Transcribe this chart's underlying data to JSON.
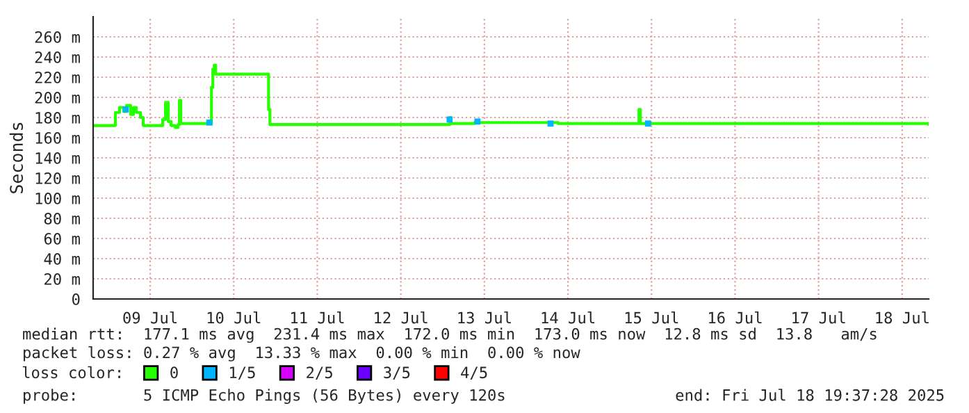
{
  "chart_data": {
    "type": "line",
    "ylabel": "Seconds",
    "xlim": [
      "2025-07-08T19:37",
      "2025-07-18T19:37"
    ],
    "xticks": [
      {
        "value": "2025-07-09T12:00",
        "label": "09 Jul"
      },
      {
        "value": "2025-07-10T12:00",
        "label": "10 Jul"
      },
      {
        "value": "2025-07-11T12:00",
        "label": "11 Jul"
      },
      {
        "value": "2025-07-12T12:00",
        "label": "12 Jul"
      },
      {
        "value": "2025-07-13T12:00",
        "label": "13 Jul"
      },
      {
        "value": "2025-07-14T12:00",
        "label": "14 Jul"
      },
      {
        "value": "2025-07-15T12:00",
        "label": "15 Jul"
      },
      {
        "value": "2025-07-16T12:00",
        "label": "16 Jul"
      },
      {
        "value": "2025-07-17T12:00",
        "label": "17 Jul"
      },
      {
        "value": "2025-07-18T12:00",
        "label": "18 Jul"
      }
    ],
    "ylim": [
      0,
      280
    ],
    "yticks": [
      0,
      {
        "value": 20,
        "label": "20 m"
      },
      {
        "value": 40,
        "label": "40 m"
      },
      {
        "value": 60,
        "label": "60 m"
      },
      {
        "value": 80,
        "label": "80 m"
      },
      {
        "value": 100,
        "label": "100 m"
      },
      {
        "value": 120,
        "label": "120 m"
      },
      {
        "value": 140,
        "label": "140 m"
      },
      {
        "value": 160,
        "label": "160 m"
      },
      {
        "value": 180,
        "label": "180 m"
      },
      {
        "value": 200,
        "label": "200 m"
      },
      {
        "value": 220,
        "label": "220 m"
      },
      {
        "value": 240,
        "label": "240 m"
      },
      {
        "value": 260,
        "label": "260 m"
      }
    ],
    "grid": true,
    "legend": "bottom",
    "legend_title": "loss color:",
    "series": [
      {
        "name": "0",
        "color": "#26ff00",
        "x": [
          "2025-07-08T19:40",
          "2025-07-09T01:36",
          "2025-07-09T02:00",
          "2025-07-09T03:12",
          "2025-07-09T04:24",
          "2025-07-09T05:12",
          "2025-07-09T06:24",
          "2025-07-09T07:12",
          "2025-07-09T08:00",
          "2025-07-09T09:12",
          "2025-07-09T10:00",
          "2025-07-09T14:48",
          "2025-07-09T15:36",
          "2025-07-09T16:24",
          "2025-07-09T17:12",
          "2025-07-09T18:00",
          "2025-07-09T19:12",
          "2025-07-09T20:00",
          "2025-07-09T20:24",
          "2025-07-09T20:48",
          "2025-07-10T05:12",
          "2025-07-10T05:36",
          "2025-07-10T06:00",
          "2025-07-10T06:24",
          "2025-07-10T06:48",
          "2025-07-10T21:36",
          "2025-07-10T22:00",
          "2025-07-10T22:24",
          "2025-07-13T01:36",
          "2025-07-13T02:00",
          "2025-07-13T02:24",
          "2025-07-13T09:12",
          "2025-07-14T09:12",
          "2025-07-15T08:00",
          "2025-07-15T08:24",
          "2025-07-15T08:48",
          "2025-07-18T19:37"
        ],
        "values": [
          172,
          172,
          185,
          190,
          186,
          192,
          183,
          190,
          185,
          180,
          172,
          172,
          178,
          195,
          176,
          172,
          170,
          173,
          197,
          174,
          174,
          210,
          228,
          232,
          223,
          223,
          188,
          173,
          173,
          180,
          174,
          175,
          174,
          174,
          188,
          174,
          173
        ]
      },
      {
        "name": "1/5",
        "color": "#00b4ff",
        "type": "scatter",
        "marker": "square",
        "x": [
          "2025-07-09T05:00",
          "2025-07-10T05:00",
          "2025-07-13T02:00",
          "2025-07-13T10:00",
          "2025-07-14T07:00",
          "2025-07-15T11:00"
        ],
        "values": [
          188,
          175,
          178,
          176,
          174,
          174
        ]
      },
      {
        "name": "2/5",
        "color": "#d800ff",
        "type": "scatter",
        "marker": "square"
      },
      {
        "name": "3/5",
        "color": "#6a00ff",
        "type": "scatter",
        "marker": "square"
      },
      {
        "name": "4/5",
        "color": "#ff0000",
        "type": "scatter",
        "marker": "square"
      }
    ],
    "annotations": [
      "median rtt:  177.1 ms avg  231.4 ms max  172.0 ms min  173.0 ms now  12.8 ms sd  13.8   am/s",
      "packet loss: 0.27 % avg  13.33 % max  0.00 % min  0.00 % now",
      "probe:       5 ICMP Echo Pings (56 Bytes) every 120s",
      "end: Fri Jul 18 19:37:28 2025"
    ]
  }
}
